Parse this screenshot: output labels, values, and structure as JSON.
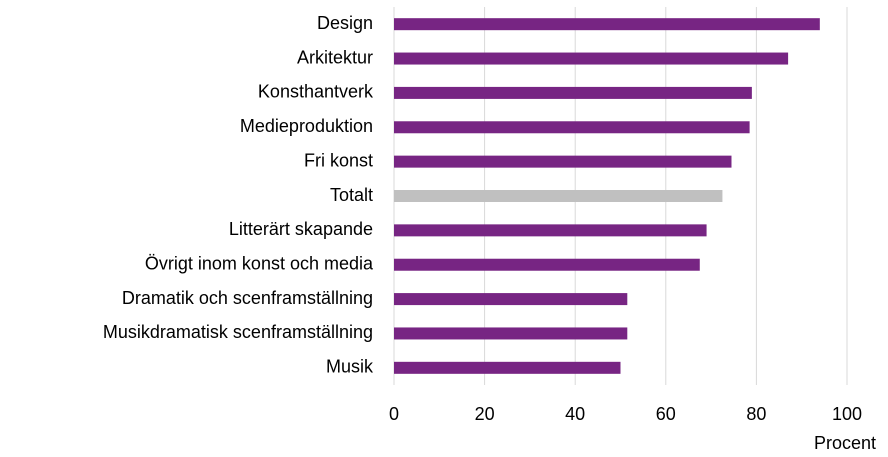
{
  "chart_data": {
    "type": "hbar",
    "categories": [
      "Design",
      "Arkitektur",
      "Konsthantverk",
      "Medieproduktion",
      "Fri konst",
      "Totalt",
      "Litterärt skapande",
      "Övrigt inom konst och media",
      "Dramatik och scenframställning",
      "Musikdramatisk scenframställning",
      "Musik"
    ],
    "values": [
      94,
      87,
      79,
      78.5,
      74.5,
      72.5,
      69,
      67.5,
      51.5,
      51.5,
      50
    ],
    "colors": [
      "#772583",
      "#772583",
      "#772583",
      "#772583",
      "#772583",
      "#c0c0c0",
      "#772583",
      "#772583",
      "#772583",
      "#772583",
      "#772583"
    ],
    "xlabel": "Procent",
    "xlim": [
      0,
      100
    ],
    "xticks": [
      0,
      20,
      40,
      60,
      80,
      100
    ],
    "grid": true
  }
}
